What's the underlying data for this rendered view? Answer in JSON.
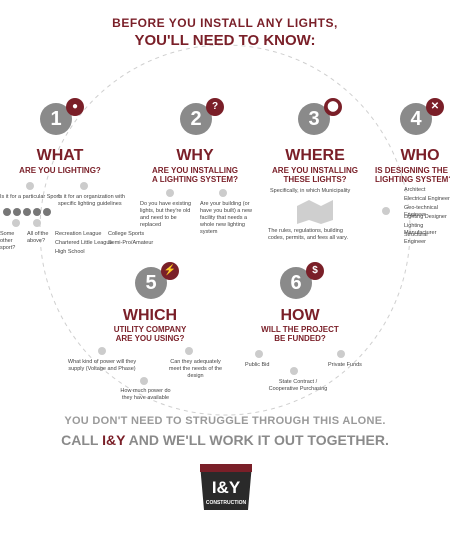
{
  "header": {
    "line1": "BEFORE YOU INSTALL ANY LIGHTS,",
    "line2": "YOU'LL NEED TO KNOW:"
  },
  "steps": [
    {
      "number": "1",
      "title": "WHAT",
      "subtitle": "ARE YOU LIGHTING?",
      "items": [
        "Is it for a particular Sport",
        "Is it for an organization with specific lighting guidelines",
        "Some other sport?",
        "All of the above?",
        "Recreation League",
        "Chartered Little League",
        "High School",
        "College Sports",
        "Semi-Pro/Amateur"
      ]
    },
    {
      "number": "2",
      "title": "WHY",
      "subtitle_line1": "ARE YOU INSTALLING",
      "subtitle_line2": "A LIGHTING SYSTEM?",
      "items": [
        "Do you have existing lights, but they're old and need to be replaced",
        "Are your building (or have you built) a new facility that needs a whole new lighting system"
      ]
    },
    {
      "number": "3",
      "title": "WHERE",
      "subtitle_line1": "ARE YOU INSTALLING",
      "subtitle_line2": "THESE LIGHTS?",
      "items": [
        "Specifically, in which Municipality",
        "The rules, regulations, building codes, permits, and fees all vary."
      ]
    },
    {
      "number": "4",
      "title": "WHO",
      "subtitle_line1": "IS DESIGNING THE",
      "subtitle_line2": "LIGHTING SYSTEM?",
      "items": [
        "Architect",
        "Electrical Engineer",
        "Geo-technical Engineer",
        "Lighting Designer",
        "Lighting Manufacturer",
        "Structural Engineer"
      ]
    },
    {
      "number": "5",
      "title": "WHICH",
      "subtitle_line1": "UTILITY COMPANY",
      "subtitle_line2": "ARE YOU USING?",
      "items": [
        "What kind of power will they supply (Voltage and Phase)",
        "How much power do they have available",
        "Can they adequately meet the needs of the design"
      ]
    },
    {
      "number": "6",
      "title": "HOW",
      "subtitle_line1": "WILL THE PROJECT",
      "subtitle_line2": "BE FUNDED?",
      "items": [
        "Public Bid",
        "State Contract / Cooperative Purchasing",
        "Private Funds"
      ]
    }
  ],
  "footer": {
    "line1": "YOU DON'T NEED TO STRUGGLE THROUGH THIS ALONE.",
    "call": "CALL",
    "brand": "I&Y",
    "rest": "AND WE'LL WORK IT OUT TOGETHER."
  },
  "logo": {
    "text": "I&Y",
    "sub": "CONSTRUCTION"
  },
  "colors": {
    "maroon": "#7a1f28",
    "gray": "#8a8a8a"
  },
  "icons": [
    "football-icon",
    "question-icon",
    "location-pin-icon",
    "tools-icon",
    "lightning-icon",
    "dollar-icon"
  ]
}
